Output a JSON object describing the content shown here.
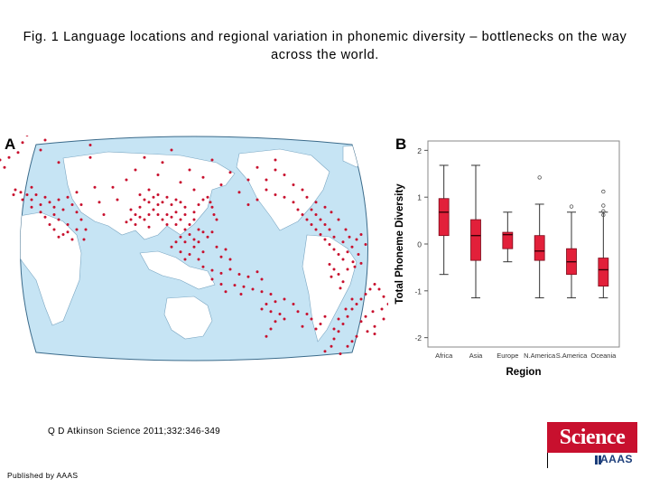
{
  "figure": {
    "title": "Fig. 1 Language locations and regional variation in phonemic diversity – bottlenecks on the way across the world.",
    "panel_a_label": "A",
    "panel_b_label": "B",
    "citation": "Q D Atkinson Science 2011;332:346-349",
    "published_by": "Published by AAAS",
    "logo_text": "Science",
    "logo_subtext": "AAAS",
    "colors": {
      "ocean": "#c6e4f4",
      "land": "#ffffff",
      "dot": "#c8102e",
      "box_fill": "#e2203a",
      "logo": "#c8102e"
    }
  },
  "chart_data": {
    "type": "box",
    "xlabel": "Region",
    "ylabel": "Total Phoneme Diversity",
    "ylim": [
      -2.2,
      2.2
    ],
    "yticks": [
      -2,
      -1,
      0,
      1,
      2
    ],
    "categories": [
      "Africa",
      "Asia",
      "Europe",
      "N.America",
      "S.America",
      "Oceania"
    ],
    "boxes": [
      {
        "category": "Africa",
        "whisker_low": -0.65,
        "q1": 0.18,
        "median": 0.68,
        "q3": 0.97,
        "whisker_high": 1.68,
        "outliers": []
      },
      {
        "category": "Asia",
        "whisker_low": -1.15,
        "q1": -0.35,
        "median": 0.18,
        "q3": 0.52,
        "whisker_high": 1.68,
        "outliers": []
      },
      {
        "category": "Europe",
        "whisker_low": -0.38,
        "q1": -0.1,
        "median": 0.2,
        "q3": 0.25,
        "whisker_high": 0.68,
        "outliers": []
      },
      {
        "category": "N.America",
        "whisker_low": -1.15,
        "q1": -0.35,
        "median": -0.15,
        "q3": 0.18,
        "whisker_high": 0.85,
        "outliers": [
          1.42
        ]
      },
      {
        "category": "S.America",
        "whisker_low": -1.15,
        "q1": -0.65,
        "median": -0.38,
        "q3": -0.1,
        "whisker_high": 0.68,
        "outliers": [
          0.8
        ]
      },
      {
        "category": "Oceania",
        "whisker_low": -1.15,
        "q1": -0.9,
        "median": -0.55,
        "q3": -0.3,
        "whisker_high": 0.68,
        "outliers": [
          1.12,
          0.82,
          0.7,
          0.62
        ]
      }
    ]
  },
  "map": {
    "projection": "world map, Pacific-centred",
    "language_locations": [
      [
        12,
        100
      ],
      [
        -5,
        40
      ],
      [
        0,
        55
      ],
      [
        5,
        35
      ],
      [
        15,
        25
      ],
      [
        20,
        5
      ],
      [
        25,
        -10
      ],
      [
        30,
        -25
      ],
      [
        40,
        20
      ],
      [
        45,
        0
      ],
      [
        55,
        -30
      ],
      [
        10,
        110
      ],
      [
        20,
        120
      ],
      [
        30,
        95
      ],
      [
        60,
        45
      ],
      [
        75,
        -40
      ],
      [
        80,
        -15
      ],
      [
        95,
        10
      ],
      [
        110,
        -35
      ],
      [
        95,
        35
      ],
      [
        120,
        95
      ],
      [
        135,
        80
      ],
      [
        145,
        60
      ],
      [
        155,
        35
      ],
      [
        160,
        100
      ],
      [
        170,
        70
      ],
      [
        175,
        45
      ],
      [
        185,
        20
      ],
      [
        195,
        85
      ],
      [
        205,
        60
      ],
      [
        210,
        100
      ],
      [
        220,
        75
      ],
      [
        230,
        40
      ],
      [
        240,
        90
      ],
      [
        250,
        65
      ],
      [
        260,
        105
      ],
      [
        270,
        80
      ],
      [
        280,
        55
      ],
      [
        290,
        100
      ],
      [
        300,
        40
      ],
      [
        125,
        120
      ],
      [
        140,
        140
      ],
      [
        150,
        155
      ],
      [
        160,
        175
      ],
      [
        170,
        130
      ],
      [
        180,
        150
      ],
      [
        190,
        170
      ],
      [
        200,
        135
      ],
      [
        210,
        160
      ],
      [
        215,
        180
      ],
      [
        100,
        95
      ],
      [
        105,
        125
      ],
      [
        110,
        150
      ],
      [
        80,
        105
      ],
      [
        85,
        130
      ],
      [
        18,
        105
      ],
      [
        25,
        110
      ],
      [
        30,
        120
      ],
      [
        35,
        110
      ],
      [
        40,
        130
      ],
      [
        45,
        115
      ],
      [
        50,
        125
      ],
      [
        55,
        135
      ],
      [
        60,
        120
      ],
      [
        65,
        140
      ],
      [
        70,
        115
      ],
      [
        75,
        130
      ],
      [
        80,
        145
      ],
      [
        60,
        160
      ],
      [
        70,
        170
      ],
      [
        65,
        190
      ],
      [
        75,
        200
      ],
      [
        80,
        180
      ],
      [
        55,
        150
      ],
      [
        50,
        170
      ],
      [
        40,
        145
      ],
      [
        30,
        135
      ],
      [
        45,
        155
      ],
      [
        85,
        160
      ],
      [
        90,
        180
      ],
      [
        88,
        200
      ],
      [
        70,
        185
      ],
      [
        60,
        195
      ],
      [
        55,
        180
      ],
      [
        150,
        110
      ],
      [
        155,
        120
      ],
      [
        160,
        125
      ],
      [
        165,
        115
      ],
      [
        170,
        110
      ],
      [
        175,
        125
      ],
      [
        180,
        115
      ],
      [
        185,
        130
      ],
      [
        190,
        120
      ],
      [
        195,
        125
      ],
      [
        165,
        140
      ],
      [
        170,
        150
      ],
      [
        175,
        160
      ],
      [
        180,
        170
      ],
      [
        185,
        155
      ],
      [
        190,
        145
      ],
      [
        195,
        160
      ],
      [
        200,
        150
      ],
      [
        205,
        170
      ],
      [
        210,
        145
      ],
      [
        215,
        130
      ],
      [
        220,
        120
      ],
      [
        225,
        115
      ],
      [
        228,
        125
      ],
      [
        230,
        135
      ],
      [
        232,
        150
      ],
      [
        235,
        160
      ],
      [
        150,
        135
      ],
      [
        145,
        150
      ],
      [
        140,
        160
      ],
      [
        135,
        165
      ],
      [
        145,
        170
      ],
      [
        155,
        160
      ],
      [
        160,
        150
      ],
      [
        200,
        180
      ],
      [
        205,
        190
      ],
      [
        210,
        200
      ],
      [
        200,
        205
      ],
      [
        195,
        195
      ],
      [
        215,
        205
      ],
      [
        225,
        195
      ],
      [
        230,
        185
      ],
      [
        220,
        185
      ],
      [
        190,
        205
      ],
      [
        185,
        215
      ],
      [
        195,
        225
      ],
      [
        205,
        230
      ],
      [
        210,
        215
      ],
      [
        200,
        240
      ],
      [
        215,
        240
      ],
      [
        220,
        225
      ],
      [
        240,
        235
      ],
      [
        250,
        240
      ],
      [
        235,
        215
      ],
      [
        245,
        220
      ],
      [
        270,
        130
      ],
      [
        280,
        120
      ],
      [
        290,
        80
      ],
      [
        300,
        60
      ],
      [
        310,
        70
      ],
      [
        320,
        90
      ],
      [
        330,
        100
      ],
      [
        335,
        115
      ],
      [
        300,
        110
      ],
      [
        310,
        115
      ],
      [
        320,
        125
      ],
      [
        325,
        140
      ],
      [
        330,
        150
      ],
      [
        335,
        160
      ],
      [
        340,
        170
      ],
      [
        345,
        180
      ],
      [
        350,
        190
      ],
      [
        355,
        200
      ],
      [
        360,
        210
      ],
      [
        365,
        220
      ],
      [
        370,
        230
      ],
      [
        375,
        240
      ],
      [
        380,
        225
      ],
      [
        385,
        215
      ],
      [
        375,
        205
      ],
      [
        365,
        195
      ],
      [
        360,
        180
      ],
      [
        355,
        170
      ],
      [
        350,
        160
      ],
      [
        345,
        150
      ],
      [
        340,
        140
      ],
      [
        345,
        125
      ],
      [
        355,
        135
      ],
      [
        362,
        145
      ],
      [
        370,
        160
      ],
      [
        378,
        180
      ],
      [
        382,
        195
      ],
      [
        390,
        200
      ],
      [
        395,
        190
      ],
      [
        400,
        210
      ],
      [
        392,
        230
      ],
      [
        386,
        245
      ],
      [
        360,
        250
      ],
      [
        365,
        260
      ],
      [
        370,
        270
      ],
      [
        375,
        285
      ],
      [
        380,
        260
      ],
      [
        388,
        255
      ],
      [
        395,
        248
      ],
      [
        372,
        298
      ],
      [
        362,
        275
      ],
      [
        410,
        290
      ],
      [
        405,
        300
      ],
      [
        400,
        310
      ],
      [
        395,
        320
      ],
      [
        390,
        330
      ],
      [
        385,
        340
      ],
      [
        380,
        355
      ],
      [
        375,
        370
      ],
      [
        370,
        385
      ],
      [
        365,
        400
      ],
      [
        362,
        415
      ],
      [
        355,
        425
      ],
      [
        365,
        380
      ],
      [
        370,
        360
      ],
      [
        378,
        340
      ],
      [
        385,
        320
      ],
      [
        415,
        300
      ],
      [
        420,
        315
      ],
      [
        425,
        330
      ],
      [
        418,
        340
      ],
      [
        408,
        345
      ],
      [
        400,
        355
      ],
      [
        395,
        365
      ],
      [
        410,
        375
      ],
      [
        402,
        385
      ],
      [
        390,
        395
      ],
      [
        385,
        405
      ],
      [
        380,
        415
      ],
      [
        372,
        430
      ],
      [
        430,
        320
      ],
      [
        435,
        330
      ],
      [
        428,
        345
      ],
      [
        420,
        360
      ],
      [
        410,
        390
      ],
      [
        220,
        255
      ],
      [
        230,
        262
      ],
      [
        240,
        268
      ],
      [
        250,
        260
      ],
      [
        260,
        270
      ],
      [
        270,
        275
      ],
      [
        280,
        265
      ],
      [
        285,
        280
      ],
      [
        230,
        280
      ],
      [
        240,
        290
      ],
      [
        255,
        292
      ],
      [
        265,
        295
      ],
      [
        275,
        300
      ],
      [
        285,
        305
      ],
      [
        295,
        310
      ],
      [
        245,
        305
      ],
      [
        262,
        310
      ],
      [
        290,
        330
      ],
      [
        300,
        325
      ],
      [
        310,
        320
      ],
      [
        320,
        330
      ],
      [
        285,
        340
      ],
      [
        295,
        345
      ],
      [
        305,
        350
      ],
      [
        300,
        365
      ],
      [
        310,
        360
      ],
      [
        325,
        345
      ],
      [
        335,
        350
      ],
      [
        295,
        380
      ],
      [
        290,
        395
      ],
      [
        340,
        360
      ],
      [
        355,
        355
      ],
      [
        350,
        370
      ],
      [
        330,
        375
      ],
      [
        345,
        380
      ]
    ]
  }
}
